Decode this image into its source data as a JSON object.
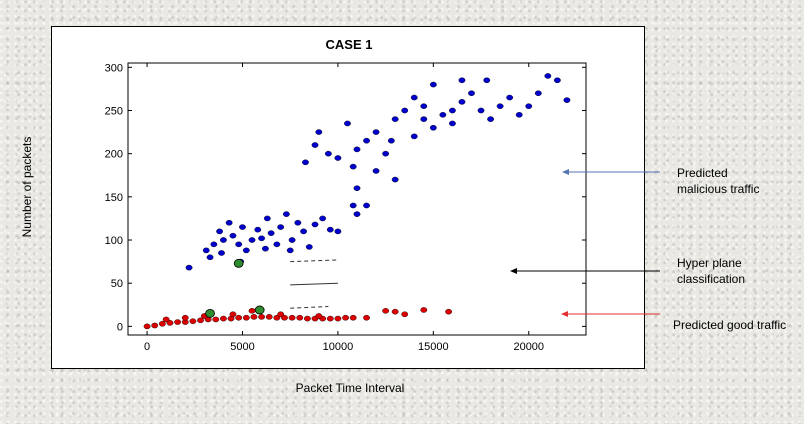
{
  "figure": {
    "y_axis_label": "Number of packets",
    "x_axis_label": "Packet Time Interval"
  },
  "annotations": [
    {
      "label": "Predicted malicious traffic",
      "line1": "Predicted",
      "line2": "malicious traffic",
      "arrow_color": "#5575b5"
    },
    {
      "label": "Hyper plane classification",
      "line1": "Hyper plane",
      "line2": "classification",
      "arrow_color": "#000000"
    },
    {
      "label": "Predicted good traffic",
      "line1": "Predicted good traffic",
      "line2": "",
      "arrow_color": "#e03030"
    }
  ],
  "chart_data": {
    "type": "scatter",
    "title": "CASE 1",
    "xlabel": "Packet Time Interval",
    "ylabel": "Number of packets",
    "xlim": [
      -1000,
      23000
    ],
    "ylim": [
      -10,
      305
    ],
    "xticks": [
      0,
      5000,
      10000,
      15000,
      20000
    ],
    "yticks": [
      0,
      50,
      100,
      150,
      200,
      250,
      300
    ],
    "grid": false,
    "series": [
      {
        "role": "malicious-cluster-high",
        "color": "#0000cc",
        "points": [
          [
            8300,
            190
          ],
          [
            8800,
            210
          ],
          [
            9500,
            200
          ],
          [
            10500,
            235
          ],
          [
            11000,
            205
          ],
          [
            11500,
            215
          ],
          [
            12000,
            225
          ],
          [
            12500,
            200
          ],
          [
            13000,
            240
          ],
          [
            13500,
            250
          ],
          [
            14000,
            220
          ],
          [
            14500,
            255
          ],
          [
            15000,
            230
          ],
          [
            15500,
            245
          ],
          [
            16000,
            235
          ],
          [
            16500,
            260
          ],
          [
            17000,
            270
          ],
          [
            17500,
            250
          ],
          [
            18000,
            240
          ],
          [
            18500,
            255
          ],
          [
            19000,
            265
          ],
          [
            19500,
            245
          ],
          [
            20000,
            255
          ],
          [
            20500,
            270
          ],
          [
            21000,
            290
          ],
          [
            21500,
            285
          ],
          [
            22000,
            262
          ],
          [
            12000,
            180
          ],
          [
            13000,
            170
          ],
          [
            11000,
            160
          ],
          [
            10800,
            185
          ],
          [
            14000,
            265
          ],
          [
            15000,
            280
          ],
          [
            16500,
            285
          ],
          [
            17800,
            285
          ],
          [
            9000,
            225
          ],
          [
            10000,
            195
          ],
          [
            12800,
            215
          ],
          [
            14500,
            240
          ],
          [
            16000,
            250
          ]
        ]
      },
      {
        "role": "malicious-cluster-low",
        "color": "#0000cc",
        "points": [
          [
            2200,
            68
          ],
          [
            3100,
            88
          ],
          [
            3300,
            80
          ],
          [
            3500,
            95
          ],
          [
            3800,
            110
          ],
          [
            4000,
            100
          ],
          [
            4300,
            120
          ],
          [
            4500,
            105
          ],
          [
            4800,
            95
          ],
          [
            5000,
            115
          ],
          [
            5200,
            88
          ],
          [
            5500,
            100
          ],
          [
            5800,
            112
          ],
          [
            6000,
            102
          ],
          [
            6300,
            125
          ],
          [
            6500,
            108
          ],
          [
            6800,
            95
          ],
          [
            7000,
            115
          ],
          [
            7300,
            130
          ],
          [
            7600,
            100
          ],
          [
            7900,
            120
          ],
          [
            8200,
            110
          ],
          [
            8500,
            92
          ],
          [
            8800,
            118
          ],
          [
            9200,
            125
          ],
          [
            9600,
            112
          ],
          [
            10000,
            110
          ],
          [
            10800,
            140
          ],
          [
            11000,
            130
          ],
          [
            11500,
            140
          ],
          [
            4900,
            75
          ],
          [
            3900,
            85
          ],
          [
            6200,
            90
          ],
          [
            7500,
            88
          ]
        ]
      },
      {
        "role": "good-traffic",
        "color": "#dd0000",
        "points": [
          [
            0,
            0
          ],
          [
            400,
            1
          ],
          [
            800,
            3
          ],
          [
            1200,
            4
          ],
          [
            1600,
            5
          ],
          [
            2000,
            5
          ],
          [
            2400,
            6
          ],
          [
            2800,
            7
          ],
          [
            3200,
            8
          ],
          [
            3600,
            8
          ],
          [
            4000,
            9
          ],
          [
            4400,
            9
          ],
          [
            4800,
            10
          ],
          [
            5200,
            10
          ],
          [
            5600,
            11
          ],
          [
            6000,
            11
          ],
          [
            6400,
            11
          ],
          [
            6800,
            10
          ],
          [
            7200,
            10
          ],
          [
            7600,
            10
          ],
          [
            8000,
            10
          ],
          [
            8400,
            9
          ],
          [
            8800,
            9
          ],
          [
            9200,
            9
          ],
          [
            9600,
            9
          ],
          [
            10000,
            9
          ],
          [
            10400,
            10
          ],
          [
            10800,
            10
          ],
          [
            11500,
            10
          ],
          [
            13000,
            17
          ],
          [
            13500,
            14
          ],
          [
            14500,
            19
          ],
          [
            15800,
            17
          ],
          [
            1000,
            8
          ],
          [
            2000,
            10
          ],
          [
            3000,
            12
          ],
          [
            4500,
            14
          ],
          [
            5500,
            18
          ],
          [
            7000,
            14
          ],
          [
            9000,
            12
          ],
          [
            12500,
            18
          ]
        ]
      },
      {
        "role": "support-vectors",
        "color": "#2e8b2e",
        "points": [
          [
            3300,
            15
          ],
          [
            5900,
            19
          ],
          [
            4800,
            73
          ]
        ]
      }
    ],
    "hyperplane": {
      "decision": [
        [
          7500,
          48
        ],
        [
          10000,
          50
        ]
      ],
      "margin_upper": [
        [
          7500,
          75
        ],
        [
          10000,
          77
        ]
      ],
      "margin_lower": [
        [
          7500,
          21
        ],
        [
          9500,
          23
        ]
      ]
    }
  }
}
